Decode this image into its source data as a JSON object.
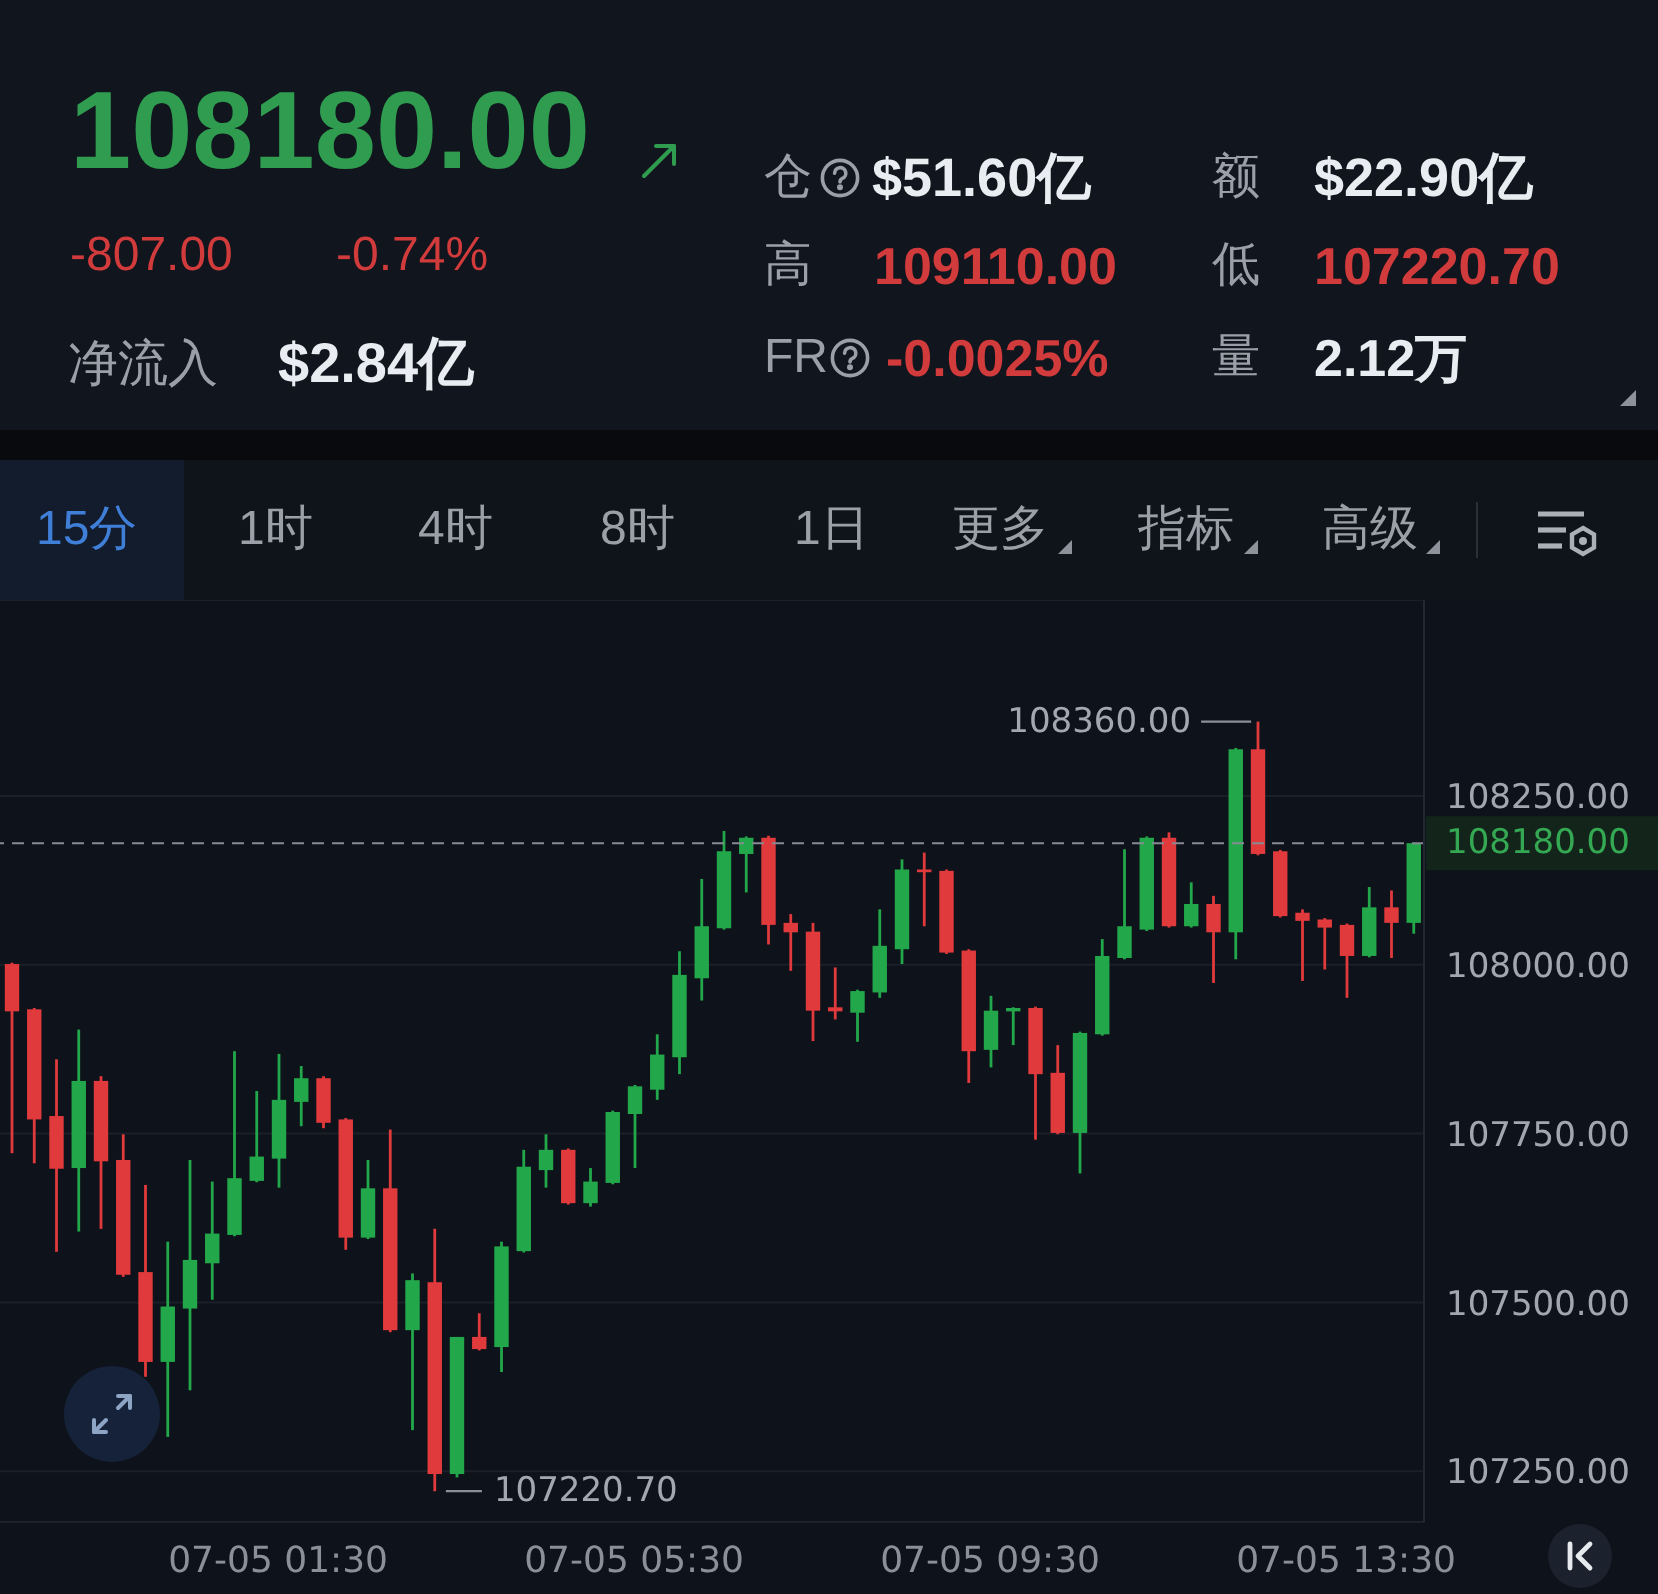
{
  "chart_data": [
    {
      "type": "other",
      "title": "108180.00",
      "annotations": [
        "-807.00",
        "-0.74%",
        "净流入",
        "$2.84亿",
        "仓",
        "$51.60亿",
        "额",
        "$22.90亿",
        "高",
        "109110.00",
        "低",
        "107220.70",
        "FR",
        "-0.0025%",
        "量",
        "2.12万",
        "15分",
        "1时",
        "4时",
        "8时",
        "1日",
        "更多",
        "指标",
        "高级"
      ]
    },
    {
      "type": "candlestick",
      "categories": [
        null,
        null,
        null,
        null,
        null,
        null,
        null,
        null,
        null,
        null,
        null,
        null,
        "07-05 01:30",
        null,
        null,
        null,
        null,
        null,
        null,
        null,
        null,
        null,
        null,
        null,
        null,
        null,
        null,
        null,
        "07-05 05:30",
        null,
        null,
        null,
        null,
        null,
        null,
        null,
        null,
        null,
        null,
        null,
        null,
        null,
        null,
        null,
        "07-05 09:30",
        null,
        null,
        null,
        null,
        null,
        null,
        null,
        null,
        null,
        null,
        null,
        null,
        null,
        null,
        null,
        "07-05 13:30",
        null,
        null,
        null
      ],
      "ohlc": [
        [
          108001,
          108003,
          107721,
          107931
        ],
        [
          107934,
          107936,
          107706,
          107771
        ],
        [
          107776,
          107860,
          107575,
          107698
        ],
        [
          107699,
          107904,
          107605,
          107828
        ],
        [
          107828,
          107835,
          107609,
          107709
        ],
        [
          107711,
          107749,
          107538,
          107541
        ],
        [
          107545,
          107674,
          107390,
          107412
        ],
        [
          107412,
          107590,
          107301,
          107494
        ],
        [
          107491,
          107711,
          107370,
          107563
        ],
        [
          107558,
          107679,
          107504,
          107602
        ],
        [
          107600,
          107872,
          107598,
          107684
        ],
        [
          107680,
          107813,
          107678,
          107716
        ],
        [
          107713,
          107868,
          107670,
          107800
        ],
        [
          107797,
          107850,
          107761,
          107832
        ],
        [
          107832,
          107835,
          107758,
          107766
        ],
        [
          107771,
          107773,
          107578,
          107596
        ],
        [
          107596,
          107711,
          107594,
          107669
        ],
        [
          107669,
          107756,
          107456,
          107459
        ],
        [
          107459,
          107543,
          107311,
          107533
        ],
        [
          107530,
          107609,
          107220.7,
          107246
        ],
        [
          107246,
          107449,
          107241,
          107449
        ],
        [
          107449,
          107484,
          107429,
          107431
        ],
        [
          107434,
          107590,
          107397,
          107583
        ],
        [
          107576,
          107726,
          107574,
          107701
        ],
        [
          107696,
          107749,
          107670,
          107726
        ],
        [
          107726,
          107728,
          107645,
          107647
        ],
        [
          107647,
          107699,
          107642,
          107679
        ],
        [
          107677,
          107784,
          107675,
          107782
        ],
        [
          107779,
          107822,
          107699,
          107820
        ],
        [
          107815,
          107897,
          107800,
          107867
        ],
        [
          107863,
          108020,
          107838,
          107985
        ],
        [
          107980,
          108127,
          107947,
          108057
        ],
        [
          108054,
          108198,
          108052,
          108168
        ],
        [
          108164,
          108190,
          108107,
          108188
        ],
        [
          108188,
          108191,
          108030,
          108059
        ],
        [
          108062,
          108075,
          107991,
          108048
        ],
        [
          108049,
          108062,
          107887,
          107932
        ],
        [
          107937,
          107996,
          107919,
          107931
        ],
        [
          107929,
          107963,
          107886,
          107961
        ],
        [
          107959,
          108082,
          107951,
          108028
        ],
        [
          108023,
          108156,
          108001,
          108141
        ],
        [
          108141,
          108166,
          108057,
          108137
        ],
        [
          108139,
          108141,
          108016,
          108018
        ],
        [
          108021,
          108023,
          107825,
          107872
        ],
        [
          107874,
          107954,
          107848,
          107932
        ],
        [
          107931,
          107937,
          107881,
          107936
        ],
        [
          107936,
          107938,
          107741,
          107838
        ],
        [
          107840,
          107881,
          107749,
          107751
        ],
        [
          107751,
          107901,
          107691,
          107899
        ],
        [
          107897,
          108038,
          107895,
          108013
        ],
        [
          108010,
          108171,
          108008,
          108057
        ],
        [
          108052,
          108190,
          108050,
          108188
        ],
        [
          108188,
          108196,
          108055,
          108057
        ],
        [
          108057,
          108122,
          108055,
          108090
        ],
        [
          108090,
          108102,
          107973,
          108048
        ],
        [
          108048,
          108321,
          108008,
          108319
        ],
        [
          108319,
          108360,
          108162,
          108164
        ],
        [
          108168,
          108170,
          108070,
          108072
        ],
        [
          108077,
          108082,
          107976,
          108065
        ],
        [
          108067,
          108069,
          107993,
          108055
        ],
        [
          108059,
          108061,
          107951,
          108013
        ],
        [
          108013,
          108115,
          108011,
          108085
        ],
        [
          108085,
          108110,
          108010,
          108062
        ],
        [
          108062,
          108180,
          108046,
          108180
        ]
      ],
      "colors": [
        "#e03a3c",
        "#e03a3c",
        "#e03a3c",
        "#22a84a",
        "#e03a3c",
        "#e03a3c",
        "#e03a3c",
        "#22a84a",
        "#22a84a",
        "#22a84a",
        "#22a84a",
        "#22a84a",
        "#22a84a",
        "#22a84a",
        "#e03a3c",
        "#e03a3c",
        "#22a84a",
        "#e03a3c",
        "#22a84a",
        "#e03a3c",
        "#22a84a",
        "#e03a3c",
        "#22a84a",
        "#22a84a",
        "#22a84a",
        "#e03a3c",
        "#22a84a",
        "#22a84a",
        "#22a84a",
        "#22a84a",
        "#22a84a",
        "#22a84a",
        "#22a84a",
        "#22a84a",
        "#e03a3c",
        "#e03a3c",
        "#e03a3c",
        "#e03a3c",
        "#22a84a",
        "#22a84a",
        "#22a84a",
        "#e03a3c",
        "#e03a3c",
        "#e03a3c",
        "#22a84a",
        "#22a84a",
        "#e03a3c",
        "#e03a3c",
        "#22a84a",
        "#22a84a",
        "#22a84a",
        "#22a84a",
        "#e03a3c",
        "#22a84a",
        "#e03a3c",
        "#22a84a",
        "#e03a3c",
        "#e03a3c",
        "#e03a3c",
        "#e03a3c",
        "#e03a3c",
        "#22a84a",
        "#e03a3c",
        "#22a84a"
      ],
      "ylim": [
        107175,
        108540
      ],
      "yticks": [
        {
          "value": 107250,
          "label": "107250.00"
        },
        {
          "value": 107500,
          "label": "107500.00"
        },
        {
          "value": 107750,
          "label": "107750.00"
        },
        {
          "value": 108000,
          "label": "108000.00"
        },
        {
          "value": 108250,
          "label": "108250.00"
        }
      ],
      "grid": "y",
      "ref_lines": [
        {
          "axis": "y",
          "value": 108180,
          "label": "108180.00",
          "color": "#868b93",
          "line_style": "dashed"
        }
      ],
      "annotations": [
        "108360.00",
        "107220.70"
      ]
    }
  ]
}
